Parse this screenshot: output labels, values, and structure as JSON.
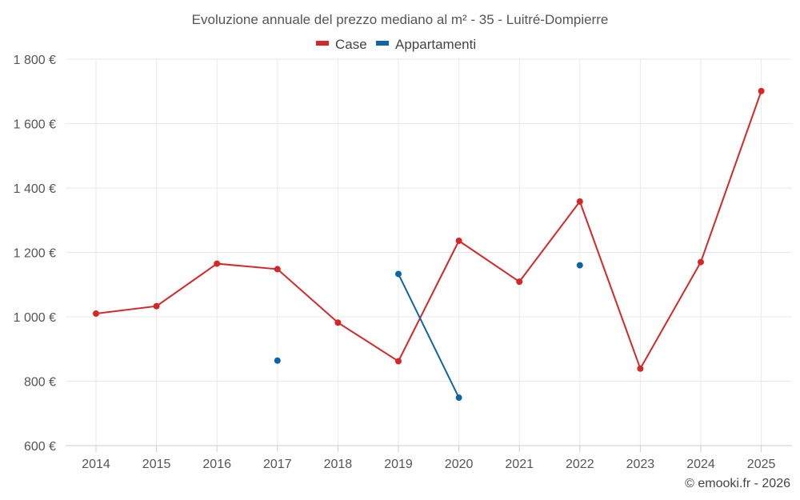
{
  "chart_data": {
    "type": "line",
    "title": "Evoluzione annuale del prezzo mediano al m² - 35 - Luitré-Dompierre",
    "categories": [
      "2014",
      "2015",
      "2016",
      "2017",
      "2018",
      "2019",
      "2020",
      "2021",
      "2022",
      "2023",
      "2024",
      "2025"
    ],
    "y_tick_labels": [
      "600 €",
      "800 €",
      "1 000 €",
      "1 200 €",
      "1 400 €",
      "1 600 €",
      "1 800 €"
    ],
    "y_ticks": [
      600,
      800,
      1000,
      1200,
      1400,
      1600,
      1800
    ],
    "ylim": [
      600,
      1800
    ],
    "grid": true,
    "legend_position": "top-center",
    "series": [
      {
        "name": "Case",
        "color": "#d62728",
        "values": [
          1010,
          1033,
          1165,
          1148,
          982,
          862,
          1236,
          1109,
          1358,
          839,
          1170,
          1701
        ]
      },
      {
        "name": "Appartamenti",
        "color": "#0e65a5",
        "values": [
          null,
          null,
          null,
          864,
          null,
          1133,
          749,
          null,
          1160,
          null,
          null,
          null
        ]
      }
    ]
  },
  "credit": "© emooki.fr - 2026"
}
